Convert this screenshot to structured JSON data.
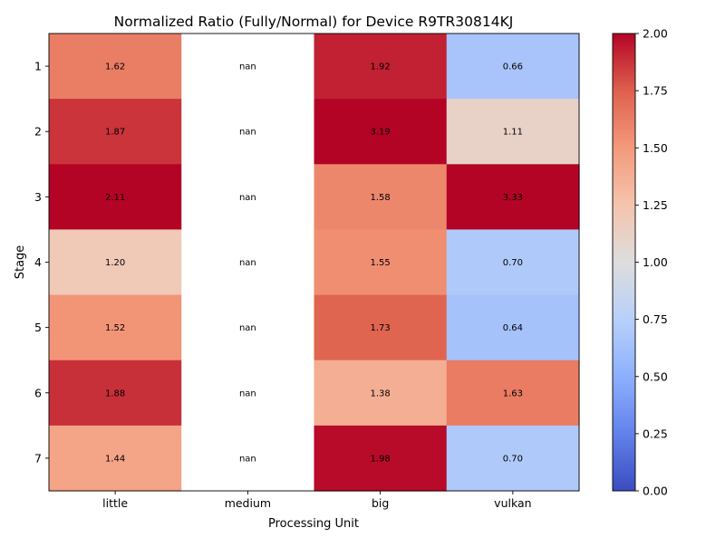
{
  "chart_data": {
    "type": "heatmap",
    "title": "Normalized Ratio (Fully/Normal) for Device R9TR30814KJ",
    "xlabel": "Processing Unit",
    "ylabel": "Stage",
    "x_categories": [
      "little",
      "medium",
      "big",
      "vulkan"
    ],
    "y_categories": [
      "1",
      "2",
      "3",
      "4",
      "5",
      "6",
      "7"
    ],
    "values": [
      [
        1.62,
        null,
        1.92,
        0.66
      ],
      [
        1.87,
        null,
        3.19,
        1.11
      ],
      [
        2.11,
        null,
        1.58,
        3.33
      ],
      [
        1.2,
        null,
        1.55,
        0.7
      ],
      [
        1.52,
        null,
        1.73,
        0.64
      ],
      [
        1.88,
        null,
        1.38,
        1.63
      ],
      [
        1.44,
        null,
        1.98,
        0.7
      ]
    ],
    "cell_labels": [
      [
        "1.62",
        "nan",
        "1.92",
        "0.66"
      ],
      [
        "1.87",
        "nan",
        "3.19",
        "1.11"
      ],
      [
        "2.11",
        "nan",
        "1.58",
        "3.33"
      ],
      [
        "1.20",
        "nan",
        "1.55",
        "0.70"
      ],
      [
        "1.52",
        "nan",
        "1.73",
        "0.64"
      ],
      [
        "1.88",
        "nan",
        "1.38",
        "1.63"
      ],
      [
        "1.44",
        "nan",
        "1.98",
        "0.70"
      ]
    ],
    "colormap": "coolwarm",
    "vmin": 0,
    "vmax": 2,
    "colorbar_ticks": [
      "0.00",
      "0.25",
      "0.50",
      "0.75",
      "1.00",
      "1.25",
      "1.50",
      "1.75",
      "2.00"
    ],
    "missing_color": "#ffffff",
    "grid": false
  }
}
